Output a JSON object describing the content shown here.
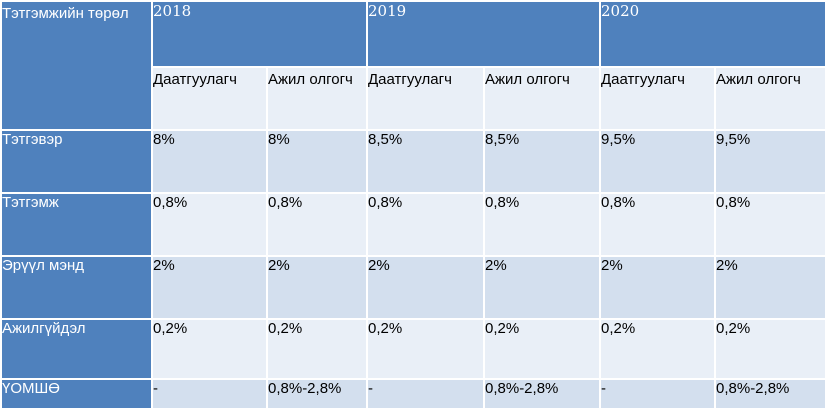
{
  "header": {
    "type_label": "Тэтгэмжийн төрөл",
    "years": [
      "2018",
      "2019",
      "2020"
    ],
    "payer_employer": "Даатгуулагч",
    "payer_employee": "Ажил олгогч"
  },
  "rows": [
    {
      "label": "Тэтгэвэр",
      "values": [
        "8%",
        "8%",
        "8,5%",
        "8,5%",
        "9,5%",
        "9,5%"
      ]
    },
    {
      "label": "Тэтгэмж",
      "values": [
        "0,8%",
        "0,8%",
        "0,8%",
        "0,8%",
        "0,8%",
        "0,8%"
      ]
    },
    {
      "label": "Эрүүл мэнд",
      "values": [
        "2%",
        "2%",
        "2%",
        "2%",
        "2%",
        "2%"
      ]
    },
    {
      "label": "Ажилгүйдэл",
      "values": [
        "0,2%",
        "0,2%",
        "0,2%",
        "0,2%",
        "0,2%",
        "0,2%"
      ]
    },
    {
      "label": "ҮОМШӨ",
      "values": [
        "-",
        "0,8%-2,8%",
        "-",
        "0,8%-2,8%",
        "-",
        "0,8%-2,8%"
      ]
    }
  ],
  "colors": {
    "header_blue": "#4f81bd",
    "band_dark": "#d3dfee",
    "band_light": "#e9eff7"
  }
}
